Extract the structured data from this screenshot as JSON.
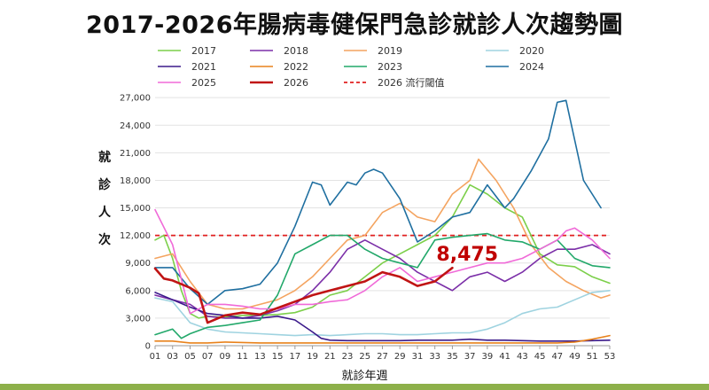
{
  "title": "2017-2026年腸病毒健保門急診就診人次趨勢圖",
  "colors": {
    "bottom_bar": "#8db04a",
    "grid": "#e3e3e3",
    "axis": "#9a9a9a",
    "threshold": "#d0191b",
    "highlight": "#c00000"
  },
  "chart_data": {
    "type": "line",
    "xlabel": "就診年週",
    "ylabel": "就診人次",
    "x_ticks": [
      "01",
      "03",
      "05",
      "07",
      "09",
      "11",
      "13",
      "15",
      "17",
      "19",
      "21",
      "23",
      "25",
      "27",
      "29",
      "31",
      "33",
      "35",
      "37",
      "39",
      "41",
      "43",
      "45",
      "47",
      "49",
      "51",
      "53"
    ],
    "xlim": [
      1,
      53
    ],
    "y_ticks": [
      "0",
      "3,000",
      "6,000",
      "9,000",
      "12,000",
      "15,000",
      "18,000",
      "21,000",
      "24,000",
      "27,000"
    ],
    "ylim": [
      0,
      27500
    ],
    "grid": "horizontal",
    "legend_position": "top",
    "threshold": {
      "name": "2026 流行閾值",
      "value": 12000,
      "color": "#e02020"
    },
    "annotation": {
      "text": "8,475",
      "color": "#c00000"
    },
    "series": [
      {
        "name": "2017",
        "color": "#7ccf4a",
        "width": 1.6,
        "points": [
          [
            1,
            11500
          ],
          [
            2,
            12000
          ],
          [
            3,
            9500
          ],
          [
            4,
            6000
          ],
          [
            5,
            3500
          ],
          [
            6,
            3000
          ],
          [
            7,
            3200
          ],
          [
            9,
            3100
          ],
          [
            11,
            3300
          ],
          [
            13,
            3300
          ],
          [
            15,
            3400
          ],
          [
            17,
            3600
          ],
          [
            19,
            4200
          ],
          [
            21,
            5500
          ],
          [
            23,
            6000
          ],
          [
            25,
            7500
          ],
          [
            27,
            9000
          ],
          [
            29,
            10000
          ],
          [
            31,
            11000
          ],
          [
            33,
            12000
          ],
          [
            35,
            14000
          ],
          [
            37,
            17500
          ],
          [
            39,
            16500
          ],
          [
            41,
            15000
          ],
          [
            43,
            14000
          ],
          [
            45,
            10000
          ],
          [
            47,
            8800
          ],
          [
            49,
            8600
          ],
          [
            51,
            7500
          ],
          [
            53,
            6800
          ]
        ]
      },
      {
        "name": "2018",
        "color": "#7b2fa8",
        "width": 1.6,
        "points": [
          [
            1,
            5500
          ],
          [
            3,
            5000
          ],
          [
            5,
            4500
          ],
          [
            7,
            3200
          ],
          [
            9,
            3000
          ],
          [
            11,
            3000
          ],
          [
            13,
            3300
          ],
          [
            15,
            3800
          ],
          [
            17,
            4500
          ],
          [
            19,
            6000
          ],
          [
            21,
            8000
          ],
          [
            23,
            10500
          ],
          [
            25,
            11500
          ],
          [
            27,
            10500
          ],
          [
            29,
            9500
          ],
          [
            31,
            8000
          ],
          [
            33,
            7000
          ],
          [
            35,
            6000
          ],
          [
            37,
            7500
          ],
          [
            39,
            8000
          ],
          [
            41,
            7000
          ],
          [
            43,
            8000
          ],
          [
            45,
            9500
          ],
          [
            47,
            10500
          ],
          [
            49,
            10500
          ],
          [
            51,
            11000
          ],
          [
            53,
            10000
          ]
        ]
      },
      {
        "name": "2019",
        "color": "#f4a460",
        "width": 1.6,
        "points": [
          [
            1,
            9500
          ],
          [
            3,
            10000
          ],
          [
            5,
            7000
          ],
          [
            7,
            4500
          ],
          [
            9,
            4000
          ],
          [
            11,
            4000
          ],
          [
            13,
            4500
          ],
          [
            15,
            5000
          ],
          [
            17,
            6000
          ],
          [
            19,
            7500
          ],
          [
            21,
            9500
          ],
          [
            23,
            11500
          ],
          [
            25,
            12000
          ],
          [
            27,
            14500
          ],
          [
            29,
            15500
          ],
          [
            31,
            14000
          ],
          [
            33,
            13500
          ],
          [
            35,
            16500
          ],
          [
            37,
            18000
          ],
          [
            38,
            20300
          ],
          [
            40,
            18000
          ],
          [
            42,
            15000
          ],
          [
            44,
            11000
          ],
          [
            46,
            8500
          ],
          [
            48,
            7000
          ],
          [
            50,
            6000
          ],
          [
            52,
            5200
          ],
          [
            53,
            5500
          ]
        ]
      },
      {
        "name": "2020",
        "color": "#9fd3e0",
        "width": 1.6,
        "points": [
          [
            1,
            5200
          ],
          [
            3,
            4800
          ],
          [
            5,
            2500
          ],
          [
            7,
            1800
          ],
          [
            9,
            1500
          ],
          [
            11,
            1400
          ],
          [
            13,
            1300
          ],
          [
            15,
            1200
          ],
          [
            17,
            1100
          ],
          [
            19,
            1200
          ],
          [
            21,
            1100
          ],
          [
            23,
            1200
          ],
          [
            25,
            1300
          ],
          [
            27,
            1300
          ],
          [
            29,
            1200
          ],
          [
            31,
            1200
          ],
          [
            33,
            1300
          ],
          [
            35,
            1400
          ],
          [
            37,
            1400
          ],
          [
            39,
            1800
          ],
          [
            41,
            2500
          ],
          [
            43,
            3500
          ],
          [
            45,
            4000
          ],
          [
            47,
            4200
          ],
          [
            49,
            5000
          ],
          [
            51,
            5800
          ],
          [
            53,
            6000
          ]
        ]
      },
      {
        "name": "2021",
        "color": "#3b1a8a",
        "width": 1.6,
        "points": [
          [
            1,
            5800
          ],
          [
            3,
            5000
          ],
          [
            5,
            4200
          ],
          [
            7,
            3500
          ],
          [
            9,
            3300
          ],
          [
            11,
            3000
          ],
          [
            13,
            3000
          ],
          [
            15,
            3200
          ],
          [
            17,
            2800
          ],
          [
            19,
            1500
          ],
          [
            20,
            800
          ],
          [
            21,
            600
          ],
          [
            23,
            550
          ],
          [
            25,
            550
          ],
          [
            27,
            550
          ],
          [
            29,
            550
          ],
          [
            31,
            600
          ],
          [
            33,
            600
          ],
          [
            35,
            600
          ],
          [
            37,
            700
          ],
          [
            39,
            600
          ],
          [
            41,
            600
          ],
          [
            43,
            550
          ],
          [
            45,
            500
          ],
          [
            47,
            500
          ],
          [
            49,
            500
          ],
          [
            51,
            550
          ],
          [
            53,
            600
          ]
        ]
      },
      {
        "name": "2022",
        "color": "#e8821c",
        "width": 1.6,
        "points": [
          [
            1,
            500
          ],
          [
            3,
            500
          ],
          [
            5,
            300
          ],
          [
            7,
            300
          ],
          [
            9,
            400
          ],
          [
            11,
            350
          ],
          [
            13,
            300
          ],
          [
            15,
            300
          ],
          [
            17,
            300
          ],
          [
            19,
            300
          ],
          [
            21,
            300
          ],
          [
            23,
            300
          ],
          [
            25,
            300
          ],
          [
            27,
            300
          ],
          [
            29,
            300
          ],
          [
            31,
            300
          ],
          [
            33,
            300
          ],
          [
            35,
            300
          ],
          [
            37,
            300
          ],
          [
            39,
            300
          ],
          [
            41,
            300
          ],
          [
            43,
            300
          ],
          [
            45,
            300
          ],
          [
            47,
            300
          ],
          [
            49,
            400
          ],
          [
            51,
            700
          ],
          [
            53,
            1100
          ]
        ]
      },
      {
        "name": "2023",
        "color": "#22a86a",
        "width": 1.6,
        "points": [
          [
            1,
            1200
          ],
          [
            3,
            1800
          ],
          [
            4,
            800
          ],
          [
            5,
            1300
          ],
          [
            7,
            2000
          ],
          [
            9,
            2200
          ],
          [
            11,
            2500
          ],
          [
            13,
            2800
          ],
          [
            15,
            5500
          ],
          [
            17,
            10000
          ],
          [
            19,
            11000
          ],
          [
            21,
            12000
          ],
          [
            23,
            12000
          ],
          [
            25,
            10500
          ],
          [
            27,
            9500
          ],
          [
            29,
            9000
          ],
          [
            31,
            8500
          ],
          [
            33,
            11500
          ],
          [
            35,
            11800
          ],
          [
            37,
            12000
          ],
          [
            39,
            12200
          ],
          [
            41,
            11500
          ],
          [
            43,
            11300
          ],
          [
            45,
            10500
          ],
          [
            47,
            11500
          ],
          [
            49,
            9500
          ],
          [
            51,
            8700
          ],
          [
            53,
            8500
          ]
        ]
      },
      {
        "name": "2024",
        "color": "#1f6fa0",
        "width": 1.6,
        "points": [
          [
            1,
            8500
          ],
          [
            3,
            8500
          ],
          [
            5,
            6200
          ],
          [
            7,
            4500
          ],
          [
            9,
            6000
          ],
          [
            11,
            6200
          ],
          [
            13,
            6700
          ],
          [
            15,
            9000
          ],
          [
            17,
            13000
          ],
          [
            19,
            17800
          ],
          [
            20,
            17500
          ],
          [
            21,
            15300
          ],
          [
            23,
            17800
          ],
          [
            24,
            17500
          ],
          [
            25,
            18800
          ],
          [
            26,
            19200
          ],
          [
            27,
            18800
          ],
          [
            29,
            16000
          ],
          [
            31,
            11300
          ],
          [
            33,
            12500
          ],
          [
            35,
            14000
          ],
          [
            37,
            14500
          ],
          [
            39,
            17500
          ],
          [
            41,
            15000
          ],
          [
            42,
            16000
          ],
          [
            44,
            19000
          ],
          [
            46,
            22500
          ],
          [
            47,
            26500
          ],
          [
            48,
            26700
          ],
          [
            50,
            18000
          ],
          [
            52,
            15000
          ]
        ]
      },
      {
        "name": "2025",
        "color": "#f06ad8",
        "width": 1.6,
        "points": [
          [
            1,
            14800
          ],
          [
            3,
            11000
          ],
          [
            5,
            3500
          ],
          [
            7,
            4500
          ],
          [
            9,
            4500
          ],
          [
            11,
            4300
          ],
          [
            13,
            4000
          ],
          [
            15,
            4000
          ],
          [
            17,
            4500
          ],
          [
            19,
            4500
          ],
          [
            21,
            4800
          ],
          [
            23,
            5000
          ],
          [
            25,
            6000
          ],
          [
            27,
            7500
          ],
          [
            29,
            8500
          ],
          [
            31,
            7000
          ],
          [
            33,
            7500
          ],
          [
            35,
            8000
          ],
          [
            37,
            8500
          ],
          [
            39,
            9000
          ],
          [
            41,
            9000
          ],
          [
            43,
            9500
          ],
          [
            45,
            10500
          ],
          [
            47,
            11500
          ],
          [
            48,
            12500
          ],
          [
            49,
            12800
          ],
          [
            51,
            11500
          ],
          [
            53,
            9500
          ]
        ]
      },
      {
        "name": "2026",
        "color": "#c01414",
        "width": 2.6,
        "points": [
          [
            1,
            8400
          ],
          [
            2,
            7300
          ],
          [
            3,
            7100
          ],
          [
            4,
            6700
          ],
          [
            5,
            6300
          ],
          [
            6,
            5700
          ],
          [
            7,
            2500
          ],
          [
            9,
            3300
          ],
          [
            11,
            3600
          ],
          [
            13,
            3400
          ],
          [
            15,
            4100
          ],
          [
            17,
            4800
          ],
          [
            19,
            5500
          ],
          [
            21,
            6000
          ],
          [
            23,
            6500
          ],
          [
            25,
            7000
          ],
          [
            27,
            8000
          ],
          [
            29,
            7500
          ],
          [
            31,
            6500
          ],
          [
            33,
            7000
          ],
          [
            35,
            8475
          ]
        ]
      }
    ]
  }
}
